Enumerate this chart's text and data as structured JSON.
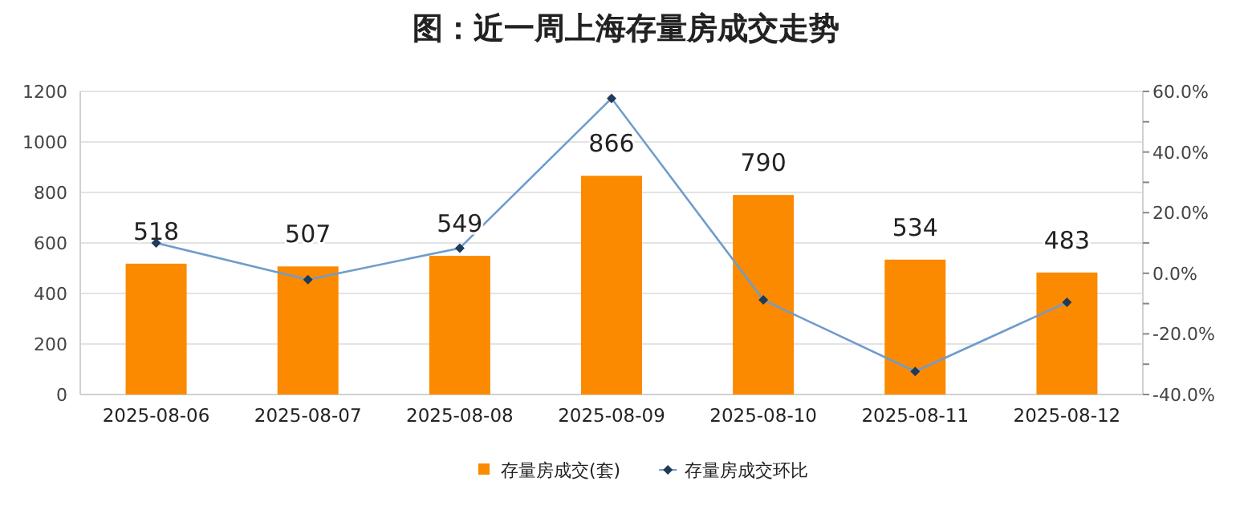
{
  "chart_data": {
    "type": "bar",
    "title": "图：近一周上海存量房成交走势",
    "categories": [
      "2025-08-06",
      "2025-08-07",
      "2025-08-08",
      "2025-08-09",
      "2025-08-10",
      "2025-08-11",
      "2025-08-12"
    ],
    "series": [
      {
        "name": "存量房成交(套)",
        "color": "#fb8a00",
        "values": [
          518,
          507,
          549,
          866,
          790,
          534,
          483
        ],
        "value_labels": [
          "518",
          "507",
          "549",
          "866",
          "790",
          "534",
          "483"
        ]
      },
      {
        "name": "存量房成交环比",
        "type": "line",
        "axis": "y2",
        "color": "#6f9ccc",
        "marker": "diamond",
        "values": [
          10,
          -2.1,
          8.3,
          57.7,
          -8.8,
          -32.4,
          -9.6
        ]
      }
    ],
    "ylim": [
      0,
      1200
    ],
    "yticks": [
      0,
      200,
      400,
      600,
      800,
      1000,
      1200
    ],
    "y2lim": [
      -40,
      60
    ],
    "y2ticks": [
      {
        "value": -40,
        "label": "-40.0%"
      },
      {
        "value": -30,
        "label": null
      },
      {
        "value": -20,
        "label": "-20.0%"
      },
      {
        "value": -10,
        "label": null
      },
      {
        "value": 0,
        "label": "0.0%"
      },
      {
        "value": 10,
        "label": null
      },
      {
        "value": 20,
        "label": "20.0%"
      },
      {
        "value": 30,
        "label": null
      },
      {
        "value": 40,
        "label": "40.0%"
      },
      {
        "value": 50,
        "label": null
      },
      {
        "value": 60,
        "label": "60.0%"
      }
    ],
    "grid": "y",
    "legend": "bottom"
  }
}
